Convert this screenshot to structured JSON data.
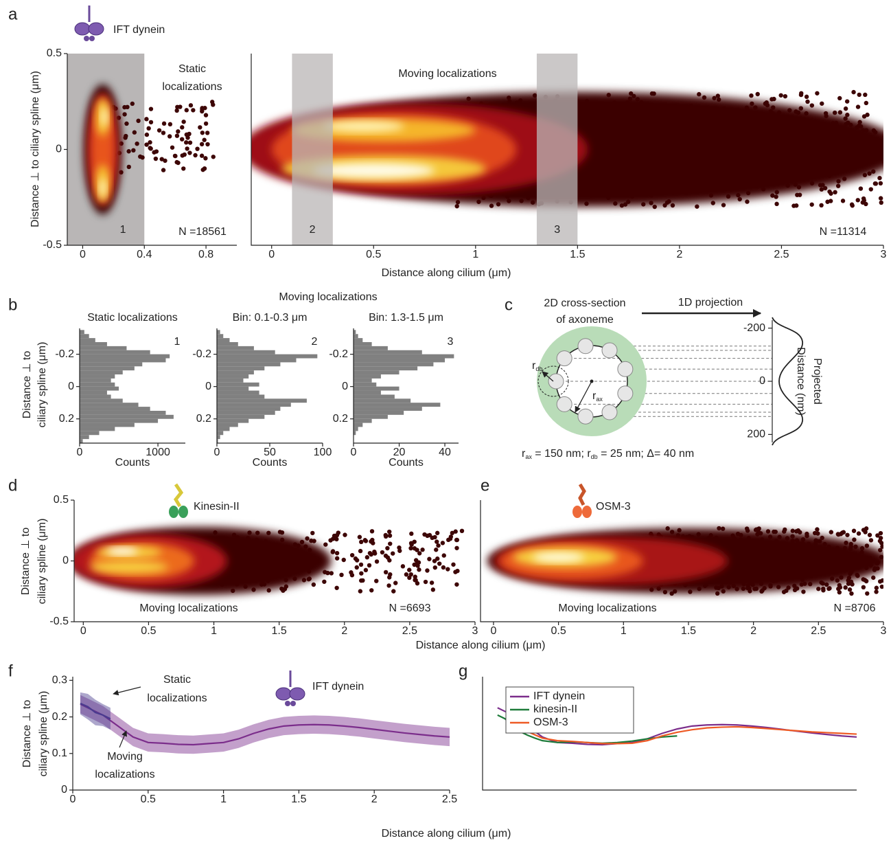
{
  "chart_data": [
    {
      "panel": "a",
      "type": "scatter",
      "protein": "IFT dynein",
      "title": [
        "Static",
        "localizations"
      ],
      "ylabel": "Distance ⊥ to ciliary spline (μm)",
      "xlim": [
        -0.1,
        1.0
      ],
      "xticks": [
        0,
        0.4,
        0.8
      ],
      "ylim": [
        -0.5,
        0.5
      ],
      "yticks": [
        -0.5,
        0,
        0.5
      ],
      "regions": [
        {
          "x": [
            -0.1,
            0.4
          ],
          "label": "1"
        }
      ],
      "n_label": "N =18561"
    },
    {
      "type": "scatter",
      "title": "Moving localizations",
      "xlabel": "Distance along cilium (μm)",
      "xlim": [
        -0.1,
        3
      ],
      "xticks": [
        0,
        0.5,
        1,
        1.5,
        2,
        2.5,
        3
      ],
      "ylim": [
        -0.5,
        0.5
      ],
      "regions": [
        {
          "x": [
            0.1,
            0.3
          ],
          "label": "2"
        },
        {
          "x": [
            1.3,
            1.5
          ],
          "label": "3"
        }
      ],
      "n_label": "N =11314"
    },
    {
      "panel": "b",
      "type": "histogram",
      "title": "Static localizations",
      "label": "1",
      "ylabel": [
        "Distance ⊥ to",
        "ciliary spline (μm)"
      ],
      "xlabel": "Counts",
      "color": "#808080",
      "bins": [
        -0.35,
        -0.325,
        -0.3,
        -0.275,
        -0.25,
        -0.225,
        -0.2,
        -0.175,
        -0.15,
        -0.125,
        -0.1,
        -0.075,
        -0.05,
        -0.025,
        0,
        0.025,
        0.05,
        0.075,
        0.1,
        0.125,
        0.15,
        0.175,
        0.2,
        0.225,
        0.25,
        0.275,
        0.3,
        0.325,
        0.35
      ],
      "values": [
        60,
        120,
        200,
        350,
        600,
        900,
        1150,
        1100,
        800,
        700,
        550,
        450,
        400,
        450,
        500,
        350,
        400,
        550,
        750,
        900,
        1100,
        1200,
        1000,
        700,
        450,
        250,
        120,
        40
      ],
      "xlim": [
        0,
        1350
      ],
      "xticks": [
        0,
        1000
      ],
      "ylim": [
        -0.36,
        0.35
      ],
      "yticks": [
        -0.2,
        0,
        0.2
      ]
    },
    {
      "type": "histogram",
      "header": "Moving localizations",
      "title": "Bin: 0.1-0.3 μm",
      "label": "2",
      "xlabel": "Counts",
      "color": "#808080",
      "bins": [
        -0.35,
        -0.325,
        -0.3,
        -0.275,
        -0.25,
        -0.225,
        -0.2,
        -0.175,
        -0.15,
        -0.125,
        -0.1,
        -0.075,
        -0.05,
        -0.025,
        0,
        0.025,
        0.05,
        0.075,
        0.1,
        0.125,
        0.15,
        0.175,
        0.2,
        0.225,
        0.25,
        0.275,
        0.3,
        0.325,
        0.35
      ],
      "values": [
        3,
        6,
        12,
        20,
        35,
        55,
        95,
        75,
        60,
        45,
        35,
        30,
        25,
        40,
        30,
        40,
        45,
        85,
        70,
        60,
        55,
        45,
        30,
        20,
        12,
        6,
        3,
        1
      ],
      "xlim": [
        0,
        100
      ],
      "xticks": [
        0,
        50,
        100
      ],
      "ylim": [
        -0.36,
        0.35
      ],
      "yticks": [
        -0.2,
        0,
        0.2
      ]
    },
    {
      "type": "histogram",
      "title": "Bin: 1.3-1.5 μm",
      "label": "3",
      "xlabel": "Counts",
      "color": "#808080",
      "bins": [
        -0.35,
        -0.325,
        -0.3,
        -0.275,
        -0.25,
        -0.225,
        -0.2,
        -0.175,
        -0.15,
        -0.125,
        -0.1,
        -0.075,
        -0.05,
        -0.025,
        0,
        0.025,
        0.05,
        0.075,
        0.1,
        0.125,
        0.15,
        0.175,
        0.2,
        0.225,
        0.25,
        0.275,
        0.3,
        0.325,
        0.35
      ],
      "values": [
        1,
        2,
        4,
        8,
        15,
        30,
        44,
        40,
        35,
        28,
        20,
        12,
        8,
        10,
        20,
        12,
        18,
        25,
        38,
        30,
        22,
        15,
        8,
        4,
        2,
        1,
        0,
        0
      ],
      "xlim": [
        0,
        46
      ],
      "xticks": [
        0,
        20,
        40
      ],
      "ylim": [
        -0.36,
        0.35
      ],
      "yticks": [
        -0.2,
        0,
        0.2
      ]
    },
    {
      "panel": "d",
      "type": "scatter",
      "protein": "Kinesin-II",
      "title": "Moving localizations",
      "n_label": "N =6693",
      "ylabel": [
        "Distance ⊥ to",
        "ciliary spline (μm)"
      ],
      "xlim": [
        -0.07,
        3
      ],
      "xticks": [
        0,
        0.5,
        1,
        1.5,
        2,
        2.5,
        3
      ],
      "ylim": [
        -0.5,
        0.5
      ],
      "yticks": [
        -0.5,
        0,
        0.5
      ]
    },
    {
      "panel": "e",
      "type": "scatter",
      "protein": "OSM-3",
      "title": "Moving localizations",
      "n_label": "N =8706",
      "xlabel": "Distance along cilium (μm)",
      "xlim": [
        -0.1,
        3
      ],
      "xticks": [
        0,
        0.5,
        1,
        1.5,
        2,
        2.5,
        3
      ],
      "ylim": [
        -0.5,
        0.5
      ]
    },
    {
      "panel": "f",
      "type": "line",
      "protein": "IFT dynein",
      "ylabel": [
        "Distance ⊥ to",
        "ciliary spline (μm)"
      ],
      "xlim": [
        0,
        2.5
      ],
      "xticks": [
        0,
        0.5,
        1,
        1.5,
        2,
        2.5
      ],
      "ylim": [
        0,
        0.31
      ],
      "yticks": [
        0,
        0.1,
        0.2,
        0.3
      ],
      "series": [
        {
          "label": [
            "Moving",
            "localizations"
          ],
          "color": "#7b2d8b",
          "x": [
            0.05,
            0.1,
            0.15,
            0.2,
            0.25,
            0.3,
            0.35,
            0.4,
            0.5,
            0.6,
            0.7,
            0.8,
            0.9,
            1.0,
            1.1,
            1.2,
            1.3,
            1.4,
            1.5,
            1.6,
            1.7,
            1.8,
            1.9,
            2.0,
            2.1,
            2.2,
            2.3,
            2.4,
            2.5
          ],
          "values": [
            0.235,
            0.225,
            0.215,
            0.205,
            0.19,
            0.175,
            0.16,
            0.145,
            0.13,
            0.128,
            0.125,
            0.124,
            0.127,
            0.13,
            0.14,
            0.155,
            0.167,
            0.175,
            0.178,
            0.179,
            0.178,
            0.175,
            0.171,
            0.166,
            0.161,
            0.156,
            0.152,
            0.148,
            0.145
          ],
          "errors": [
            0.025,
            0.025,
            0.025,
            0.025,
            0.025,
            0.025,
            0.025,
            0.025,
            0.025,
            0.025,
            0.025,
            0.025,
            0.025,
            0.025,
            0.025,
            0.025,
            0.025,
            0.025,
            0.025,
            0.025,
            0.025,
            0.025,
            0.025,
            0.025,
            0.025,
            0.025,
            0.025,
            0.025,
            0.025
          ]
        },
        {
          "label": [
            "Static",
            "localizations"
          ],
          "color": "#4a3b8f",
          "x": [
            0.05,
            0.1,
            0.15,
            0.2,
            0.25
          ],
          "values": [
            0.237,
            0.228,
            0.212,
            0.205,
            0.195
          ],
          "errors": [
            0.03,
            0.035,
            0.035,
            0.03,
            0.03
          ]
        }
      ]
    },
    {
      "panel": "g",
      "type": "line",
      "legend": "upper left",
      "xlabel": "Distance along cilium (μm)",
      "xlim": [
        0,
        2.5
      ],
      "ylim": [
        0,
        0.31
      ],
      "series": [
        {
          "name": "IFT dynein",
          "color": "#7b2d8b",
          "x": [
            0.1,
            0.15,
            0.2,
            0.25,
            0.3,
            0.35,
            0.4,
            0.5,
            0.6,
            0.7,
            0.8,
            0.9,
            1.0,
            1.1,
            1.2,
            1.3,
            1.4,
            1.5,
            1.6,
            1.7,
            1.8,
            1.9,
            2.0,
            2.1,
            2.2,
            2.3,
            2.4,
            2.5
          ],
          "values": [
            0.225,
            0.215,
            0.205,
            0.19,
            0.175,
            0.16,
            0.145,
            0.13,
            0.128,
            0.125,
            0.124,
            0.127,
            0.13,
            0.14,
            0.155,
            0.167,
            0.175,
            0.178,
            0.179,
            0.178,
            0.175,
            0.171,
            0.166,
            0.161,
            0.156,
            0.152,
            0.148,
            0.145
          ]
        },
        {
          "name": "kinesin-II",
          "color": "#1e7b3a",
          "x": [
            0.1,
            0.15,
            0.2,
            0.25,
            0.3,
            0.35,
            0.4,
            0.5,
            0.6,
            0.7,
            0.8,
            0.9,
            1.0,
            1.1,
            1.2,
            1.3
          ],
          "values": [
            0.205,
            0.195,
            0.175,
            0.16,
            0.15,
            0.142,
            0.135,
            0.13,
            0.132,
            0.13,
            0.128,
            0.13,
            0.134,
            0.14,
            0.145,
            0.148
          ]
        },
        {
          "name": "OSM-3",
          "color": "#ee5a24",
          "x": [
            0.2,
            0.3,
            0.4,
            0.5,
            0.6,
            0.7,
            0.8,
            0.9,
            1.0,
            1.1,
            1.2,
            1.3,
            1.4,
            1.5,
            1.6,
            1.7,
            1.8,
            1.9,
            2.0,
            2.1,
            2.2,
            2.3,
            2.4,
            2.5
          ],
          "values": [
            0.185,
            0.16,
            0.142,
            0.135,
            0.133,
            0.13,
            0.127,
            0.127,
            0.128,
            0.135,
            0.148,
            0.158,
            0.165,
            0.17,
            0.172,
            0.173,
            0.171,
            0.168,
            0.165,
            0.162,
            0.159,
            0.157,
            0.155,
            0.153
          ]
        }
      ]
    }
  ],
  "cross_section": {
    "panel": "c",
    "title": [
      "2D cross-section",
      "of axoneme"
    ],
    "arrow_label": "1D projection",
    "ylabel": [
      "Projected",
      "Distance (nm)"
    ],
    "ylim": [
      -230,
      230
    ],
    "yticks": [
      -200,
      0,
      200
    ],
    "r_db": [
      "r",
      "db"
    ],
    "r_ax": [
      "r",
      "ax"
    ],
    "caption": [
      "r",
      "ax",
      " = 150 nm; r",
      "db",
      " = 25 nm; Δ= 40 nm"
    ]
  }
}
